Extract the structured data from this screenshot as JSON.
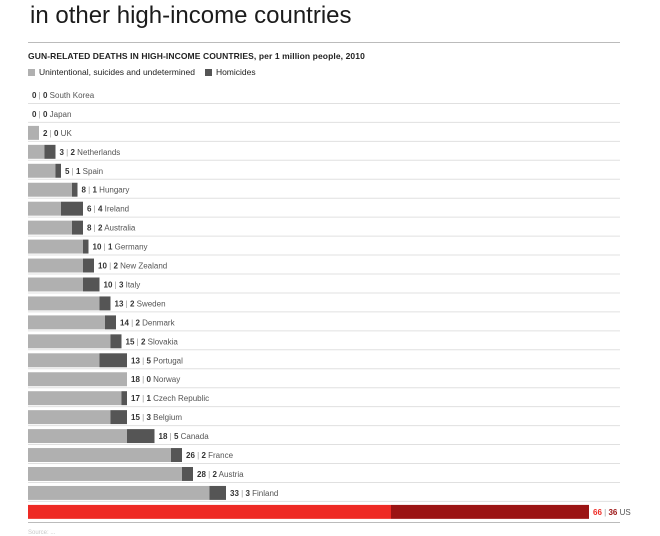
{
  "headline": "in other high-income countries",
  "chart_data": {
    "type": "bar",
    "stacked": true,
    "orientation": "horizontal",
    "title": "GUN-RELATED DEATHS IN HIGH-INCOME COUNTRIES, per 1 million people, 2010",
    "legend": [
      {
        "name": "Unintentional, suicides and undetermined",
        "color": "#b0b0b0"
      },
      {
        "name": "Homicides",
        "color": "#555555"
      }
    ],
    "categories": [
      "South Korea",
      "Japan",
      "UK",
      "Netherlands",
      "Spain",
      "Hungary",
      "Ireland",
      "Australia",
      "Germany",
      "New Zealand",
      "Italy",
      "Sweden",
      "Denmark",
      "Slovakia",
      "Portugal",
      "Norway",
      "Czech Republic",
      "Belgium",
      "Canada",
      "France",
      "Austria",
      "Finland",
      "US"
    ],
    "series": [
      {
        "name": "Unintentional, suicides and undetermined",
        "values": [
          0,
          0,
          2,
          3,
          5,
          8,
          6,
          8,
          10,
          10,
          10,
          13,
          14,
          15,
          13,
          18,
          17,
          15,
          18,
          26,
          28,
          33,
          66
        ]
      },
      {
        "name": "Homicides",
        "values": [
          0,
          0,
          0,
          2,
          1,
          1,
          4,
          2,
          1,
          2,
          3,
          2,
          2,
          2,
          5,
          0,
          1,
          3,
          5,
          2,
          2,
          3,
          36
        ]
      }
    ],
    "highlight": {
      "category": "US",
      "colors": [
        "#ee2a24",
        "#9b1414"
      ]
    },
    "grid": false
  },
  "footnote": "Source: ..."
}
